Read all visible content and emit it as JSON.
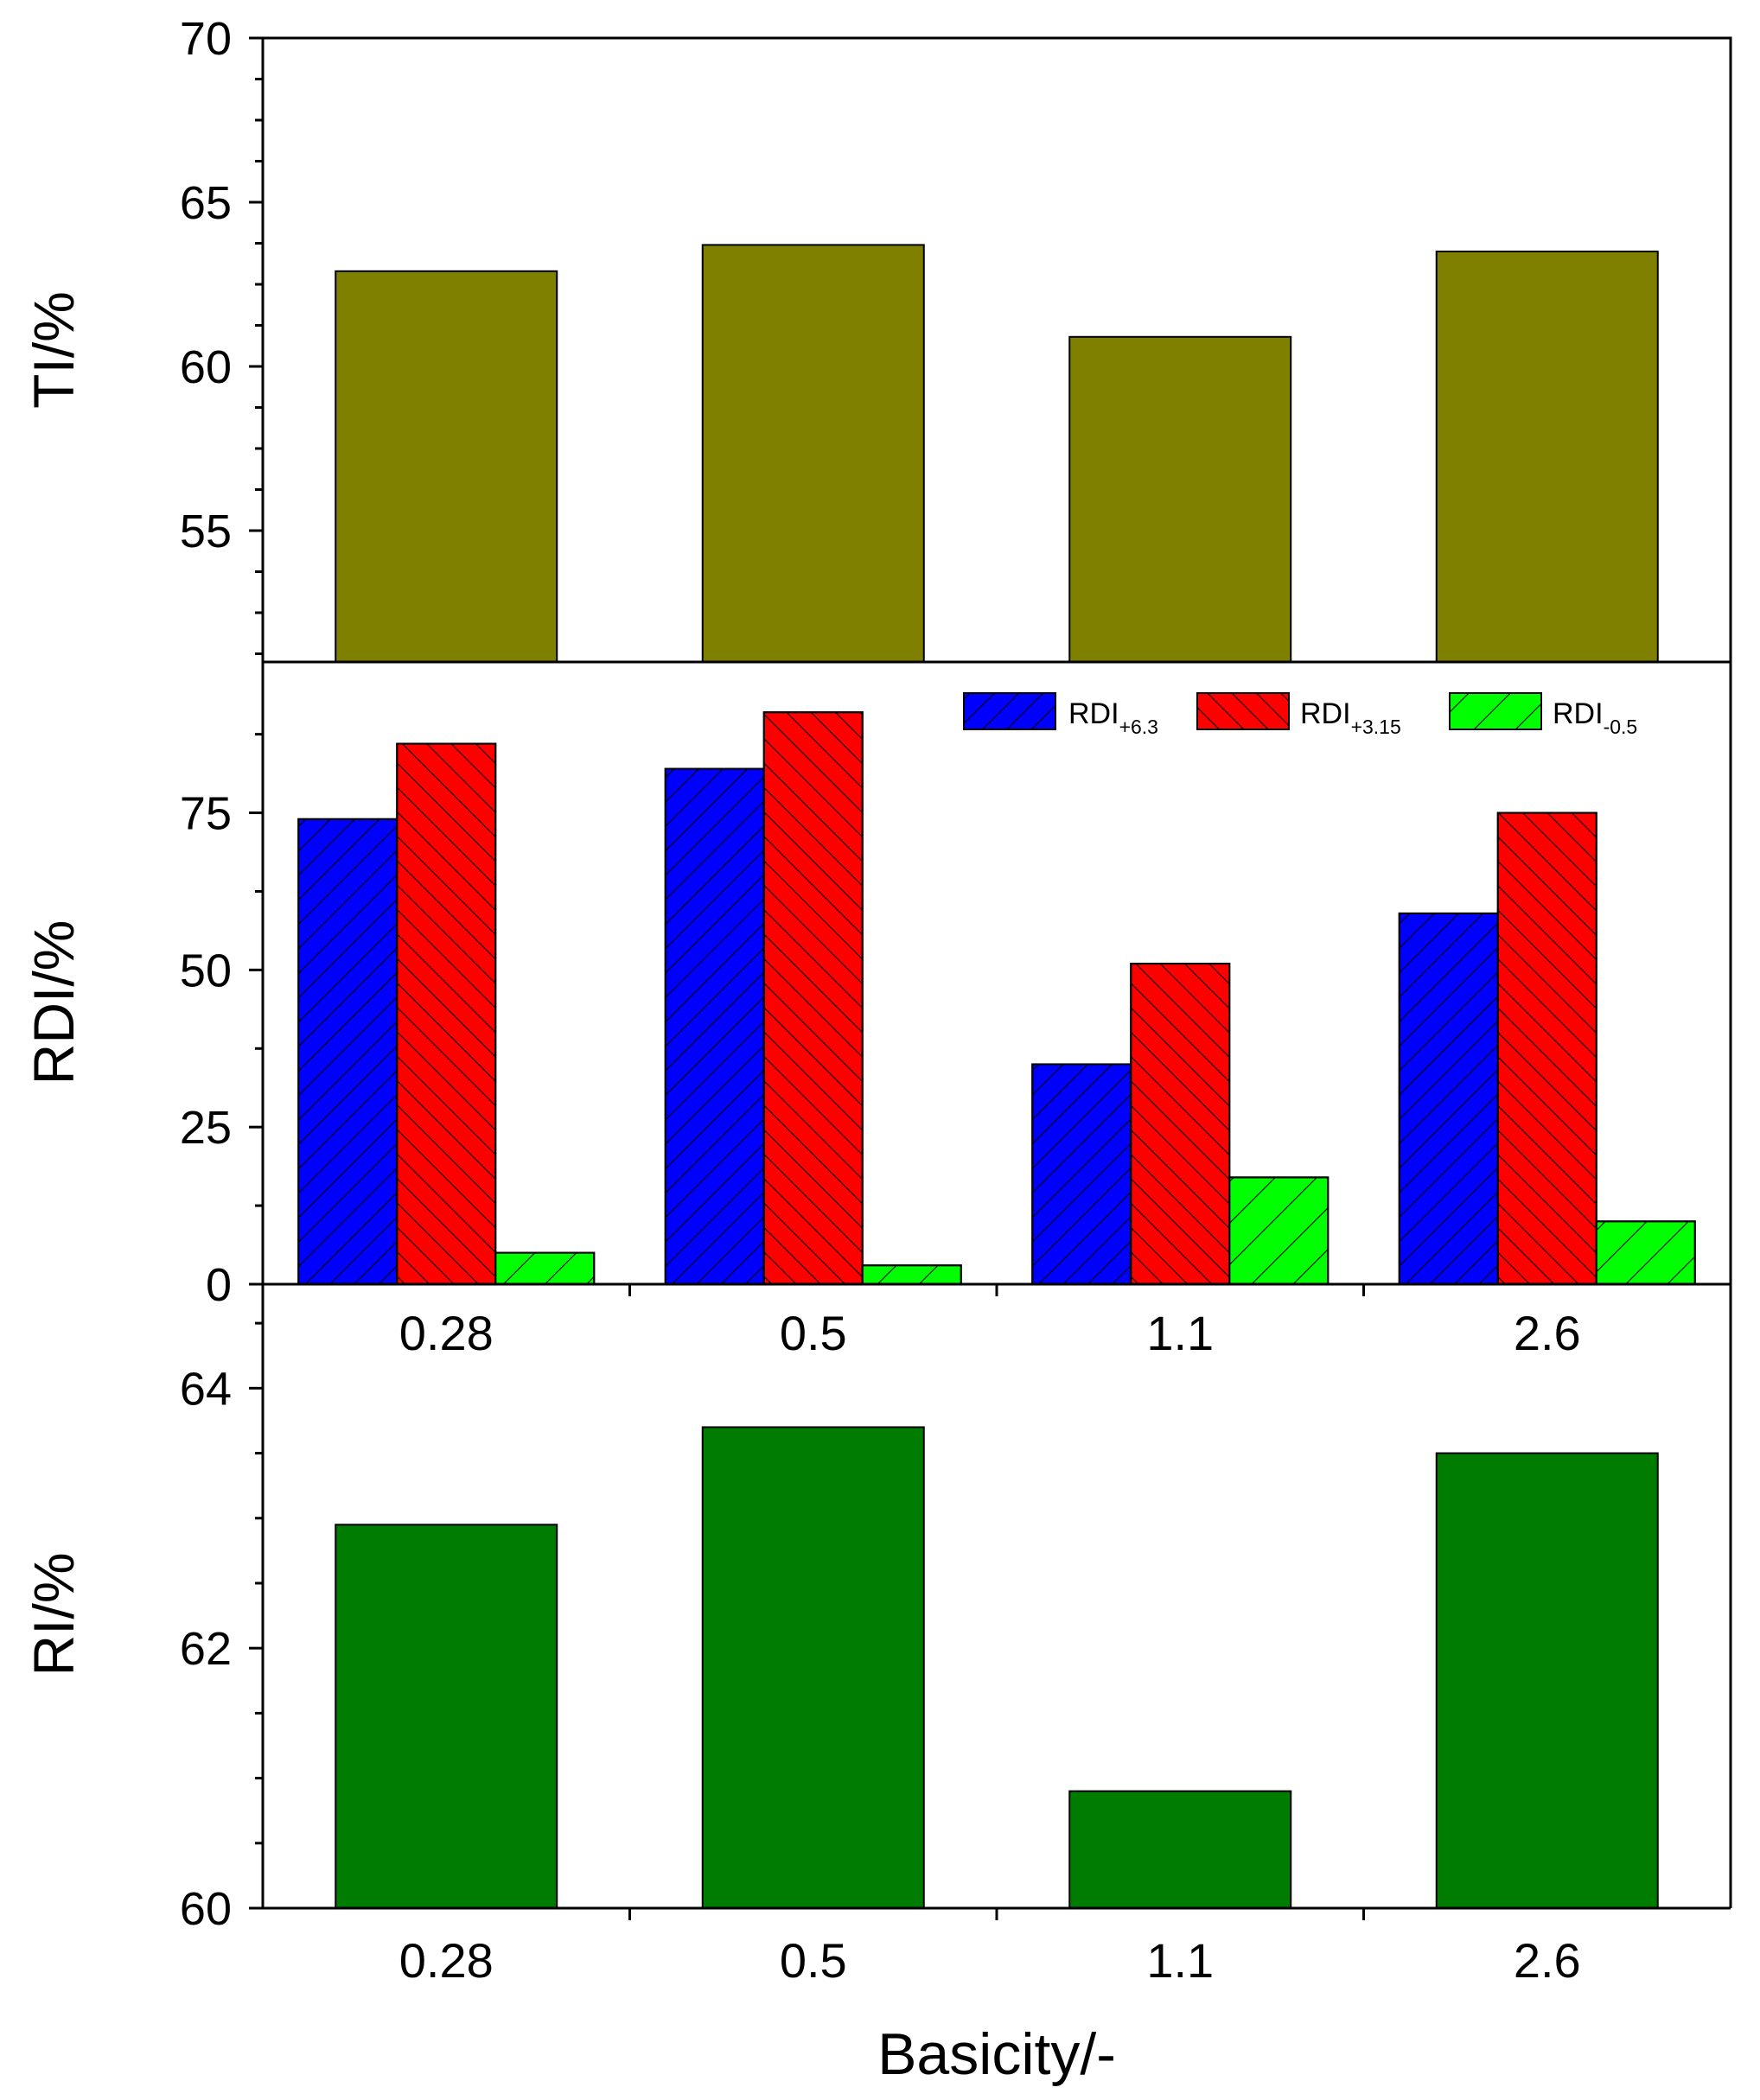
{
  "chart_data": [
    {
      "id": "ti",
      "type": "bar",
      "categories": [
        "0.28",
        "0.5",
        "1.1",
        "2.6"
      ],
      "values": [
        62.9,
        63.7,
        60.9,
        63.5
      ],
      "ylabel": "TI/%",
      "ylim": [
        51,
        70
      ],
      "yticks": [
        "55",
        "60",
        "65",
        "70"
      ],
      "color": "#808000"
    },
    {
      "id": "rdi",
      "type": "bar",
      "categories": [
        "0.28",
        "0.5",
        "1.1",
        "2.6"
      ],
      "series": [
        {
          "name": "RDI",
          "sub": "+6.3",
          "values": [
            74,
            82,
            35,
            59
          ],
          "color": "#0000ff",
          "hatch": "forward"
        },
        {
          "name": "RDI",
          "sub": "+3.15",
          "values": [
            86,
            91,
            51,
            75
          ],
          "color": "#ff0000",
          "hatch": "back"
        },
        {
          "name": "RDI",
          "sub": "-0.5",
          "values": [
            5,
            3,
            17,
            10
          ],
          "color": "#00ff00",
          "hatch": "forward-wide"
        }
      ],
      "ylabel": "RDI/%",
      "ylim": [
        0,
        99
      ],
      "yticks": [
        "0",
        "25",
        "50",
        "75"
      ],
      "legend": "top-right"
    },
    {
      "id": "ri",
      "type": "bar",
      "categories": [
        "0.28",
        "0.5",
        "1.1",
        "2.6"
      ],
      "values": [
        62.95,
        63.7,
        60.9,
        63.5
      ],
      "ylabel": "RI/%",
      "xlabel": "Basicity/-",
      "ylim": [
        60,
        64.8
      ],
      "yticks": [
        "60",
        "62",
        "64"
      ],
      "color": "#007c00"
    }
  ]
}
